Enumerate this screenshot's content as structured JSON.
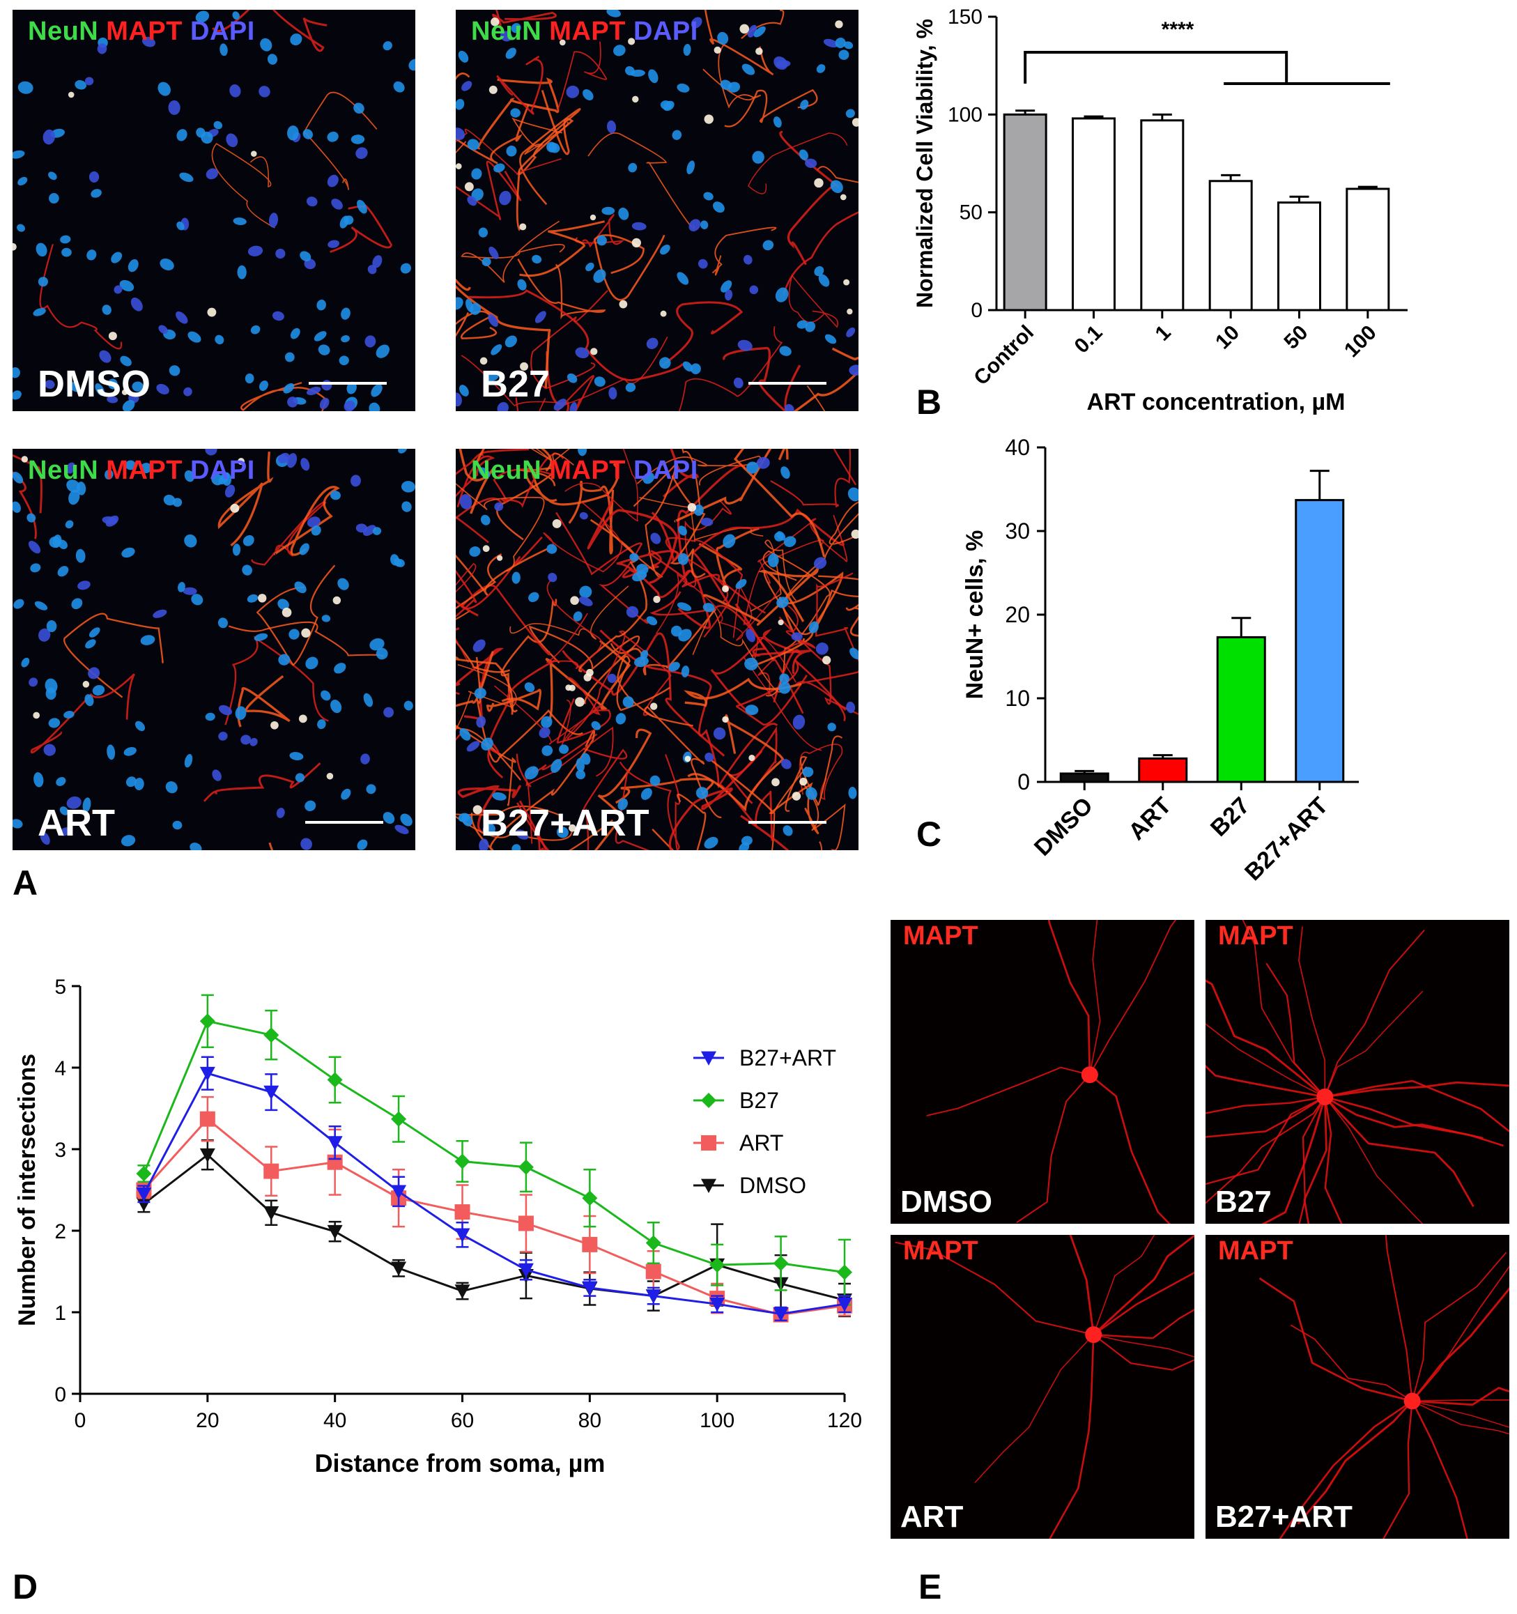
{
  "panel_letters": {
    "a": "A",
    "b": "B",
    "c": "C",
    "d": "D",
    "e": "E"
  },
  "panel_a": {
    "stain_green": "NeuN",
    "stain_red": "MAPT",
    "stain_blue": "DAPI",
    "images": [
      "DMSO",
      "B27",
      "ART",
      "B27+ART"
    ]
  },
  "panel_e": {
    "stain": "MAPT",
    "images": [
      "DMSO",
      "B27",
      "ART",
      "B27+ART"
    ]
  },
  "colors": {
    "control_bar": "#a6a6a8",
    "art_bar": "#ffffff",
    "dmso": "#101010",
    "art": "#ff0000",
    "b27": "#00e000",
    "b27_art": "#4a9eff",
    "line_b27_art": "#1e1ee6",
    "line_b27": "#1ab81a",
    "line_art": "#f25c5c",
    "line_dmso": "#111111"
  },
  "chart_data": [
    {
      "id": "B",
      "type": "bar",
      "categories": [
        "Control",
        "0.1",
        "1",
        "10",
        "50",
        "100"
      ],
      "values": [
        100,
        98,
        97,
        66,
        55,
        62
      ],
      "errors": [
        2,
        1,
        3,
        3,
        3,
        1
      ],
      "xlabel": "ART concentration, µM",
      "ylabel": "Normalized Cell Viability, %",
      "ylim": [
        0,
        150
      ],
      "yticks": [
        0,
        50,
        100,
        150
      ],
      "annotation": "****"
    },
    {
      "id": "C",
      "type": "bar",
      "categories": [
        "DMSO",
        "ART",
        "B27",
        "B27+ART"
      ],
      "values": [
        1,
        2.8,
        17.3,
        33.7
      ],
      "errors": [
        0.3,
        0.4,
        2.3,
        3.5
      ],
      "xlabel": "",
      "ylabel": "NeuN+ cells, %",
      "ylim": [
        0,
        40
      ],
      "yticks": [
        0,
        10,
        20,
        30,
        40
      ]
    },
    {
      "id": "D",
      "type": "line",
      "x": [
        10,
        20,
        30,
        40,
        50,
        60,
        70,
        80,
        90,
        100,
        110,
        120
      ],
      "series": [
        {
          "name": "B27+ART",
          "marker": "triangle-down",
          "values": [
            2.45,
            3.93,
            3.7,
            3.08,
            2.48,
            1.95,
            1.52,
            1.3,
            1.2,
            1.1,
            0.98,
            1.1
          ],
          "errors": [
            0.1,
            0.2,
            0.22,
            0.2,
            0.18,
            0.15,
            0.12,
            0.1,
            0.1,
            0.1,
            0.08,
            0.1
          ]
        },
        {
          "name": "B27",
          "marker": "diamond",
          "values": [
            2.7,
            4.57,
            4.4,
            3.85,
            3.37,
            2.85,
            2.78,
            2.4,
            1.85,
            1.58,
            1.6,
            1.49
          ],
          "errors": [
            0.1,
            0.32,
            0.3,
            0.28,
            0.28,
            0.25,
            0.3,
            0.35,
            0.25,
            0.25,
            0.33,
            0.4
          ]
        },
        {
          "name": "ART",
          "marker": "square",
          "values": [
            2.5,
            3.37,
            2.73,
            2.84,
            2.4,
            2.23,
            2.09,
            1.83,
            1.5,
            1.17,
            0.97,
            1.08
          ],
          "errors": [
            0.1,
            0.27,
            0.3,
            0.4,
            0.35,
            0.33,
            0.35,
            0.35,
            0.25,
            0.18,
            0.08,
            0.12
          ]
        },
        {
          "name": "DMSO",
          "marker": "triangle-down",
          "values": [
            2.33,
            2.93,
            2.22,
            1.99,
            1.54,
            1.26,
            1.45,
            1.29,
            1.2,
            1.58,
            1.35,
            1.15
          ],
          "errors": [
            0.1,
            0.18,
            0.15,
            0.12,
            0.1,
            0.1,
            0.28,
            0.2,
            0.18,
            0.5,
            0.35,
            0.2
          ]
        }
      ],
      "xlabel": "Distance from soma, µm",
      "ylabel": "Number of intersections",
      "xlim": [
        0,
        120
      ],
      "ylim": [
        0,
        5
      ],
      "xticks": [
        0,
        20,
        40,
        60,
        80,
        100,
        120
      ],
      "yticks": [
        0,
        1,
        2,
        3,
        4,
        5
      ],
      "legend": "right"
    }
  ]
}
